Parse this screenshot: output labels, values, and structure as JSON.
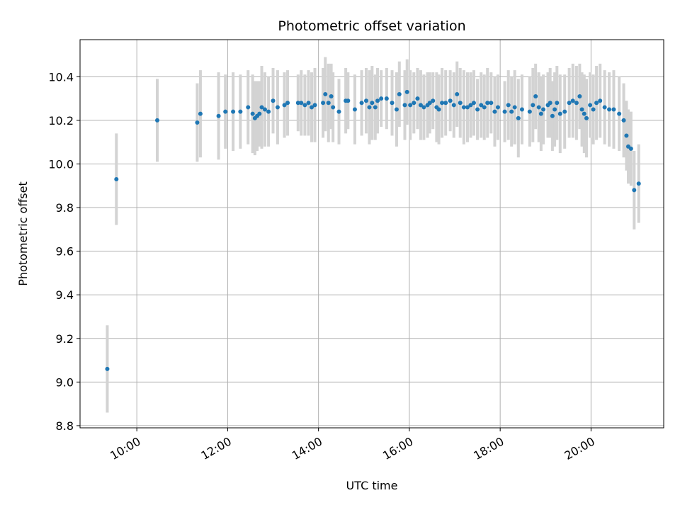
{
  "chart_data": {
    "type": "scatter",
    "title": "Photometric offset variation",
    "xlabel": "UTC time",
    "ylabel": "Photometric offset",
    "x_unit": "hour",
    "xlim": [
      8.75,
      21.6
    ],
    "ylim": [
      8.79,
      10.57
    ],
    "x_ticks": [
      {
        "value": 10,
        "label": "10:00"
      },
      {
        "value": 12,
        "label": "12:00"
      },
      {
        "value": 14,
        "label": "14:00"
      },
      {
        "value": 16,
        "label": "16:00"
      },
      {
        "value": 18,
        "label": "18:00"
      },
      {
        "value": 20,
        "label": "20:00"
      }
    ],
    "y_ticks": [
      {
        "value": 8.8,
        "label": "8.8"
      },
      {
        "value": 9.0,
        "label": "9.0"
      },
      {
        "value": 9.2,
        "label": "9.2"
      },
      {
        "value": 9.4,
        "label": "9.4"
      },
      {
        "value": 9.6,
        "label": "9.6"
      },
      {
        "value": 9.8,
        "label": "9.8"
      },
      {
        "value": 10.0,
        "label": "10.0"
      },
      {
        "value": 10.2,
        "label": "10.2"
      },
      {
        "value": 10.4,
        "label": "10.4"
      }
    ],
    "grid": true,
    "colors": {
      "point": "#1f77b4",
      "errorbar": "#d3d3d3",
      "grid": "#b0b0b0"
    },
    "series": [
      {
        "x": [
          9.35,
          9.55,
          10.45,
          11.33,
          11.4,
          11.8,
          11.95,
          12.12,
          12.28,
          12.45,
          12.55,
          12.6,
          12.65,
          12.7,
          12.75,
          12.82,
          12.9,
          13.0,
          13.1,
          13.25,
          13.32,
          13.55,
          13.62,
          13.7,
          13.78,
          13.85,
          13.92,
          14.1,
          14.15,
          14.22,
          14.28,
          14.32,
          14.45,
          14.6,
          14.65,
          14.8,
          14.95,
          15.05,
          15.12,
          15.18,
          15.25,
          15.3,
          15.38,
          15.5,
          15.62,
          15.72,
          15.78,
          15.9,
          15.95,
          16.02,
          16.1,
          16.18,
          16.25,
          16.32,
          16.4,
          16.45,
          16.52,
          16.6,
          16.65,
          16.72,
          16.8,
          16.9,
          16.98,
          17.05,
          17.12,
          17.2,
          17.28,
          17.35,
          17.42,
          17.5,
          17.58,
          17.65,
          17.72,
          17.8,
          17.88,
          17.95,
          18.1,
          18.18,
          18.25,
          18.32,
          18.4,
          18.48,
          18.65,
          18.72,
          18.78,
          18.85,
          18.9,
          18.95,
          19.05,
          19.1,
          19.15,
          19.2,
          19.25,
          19.32,
          19.42,
          19.52,
          19.6,
          19.68,
          19.75,
          19.8,
          19.85,
          19.9,
          19.98,
          20.05,
          20.12,
          20.2,
          20.3,
          20.4,
          20.5,
          20.62,
          20.72,
          20.78,
          20.82,
          20.88,
          20.95,
          21.05
        ],
        "y": [
          9.06,
          9.93,
          10.2,
          10.19,
          10.23,
          10.22,
          10.24,
          10.24,
          10.24,
          10.26,
          10.23,
          10.21,
          10.22,
          10.23,
          10.26,
          10.25,
          10.24,
          10.29,
          10.26,
          10.27,
          10.28,
          10.28,
          10.28,
          10.27,
          10.28,
          10.26,
          10.27,
          10.28,
          10.32,
          10.28,
          10.31,
          10.26,
          10.24,
          10.29,
          10.29,
          10.25,
          10.28,
          10.29,
          10.26,
          10.28,
          10.26,
          10.29,
          10.3,
          10.3,
          10.28,
          10.25,
          10.32,
          10.27,
          10.33,
          10.27,
          10.28,
          10.3,
          10.27,
          10.26,
          10.27,
          10.28,
          10.29,
          10.26,
          10.25,
          10.28,
          10.28,
          10.29,
          10.27,
          10.32,
          10.28,
          10.26,
          10.26,
          10.27,
          10.28,
          10.25,
          10.27,
          10.26,
          10.28,
          10.28,
          10.24,
          10.26,
          10.24,
          10.27,
          10.24,
          10.26,
          10.21,
          10.25,
          10.24,
          10.27,
          10.31,
          10.26,
          10.23,
          10.25,
          10.27,
          10.28,
          10.22,
          10.25,
          10.28,
          10.23,
          10.24,
          10.28,
          10.29,
          10.28,
          10.31,
          10.25,
          10.23,
          10.21,
          10.27,
          10.25,
          10.28,
          10.29,
          10.26,
          10.25,
          10.25,
          10.23,
          10.2,
          10.13,
          10.08,
          10.07,
          9.88,
          9.91
        ],
        "yerr": [
          0.2,
          0.21,
          0.19,
          0.18,
          0.2,
          0.2,
          0.17,
          0.18,
          0.17,
          0.17,
          0.18,
          0.17,
          0.16,
          0.15,
          0.19,
          0.17,
          0.16,
          0.15,
          0.17,
          0.15,
          0.15,
          0.13,
          0.15,
          0.14,
          0.15,
          0.16,
          0.17,
          0.16,
          0.17,
          0.18,
          0.15,
          0.16,
          0.15,
          0.15,
          0.13,
          0.16,
          0.15,
          0.15,
          0.17,
          0.17,
          0.15,
          0.15,
          0.13,
          0.14,
          0.15,
          0.17,
          0.15,
          0.16,
          0.15,
          0.16,
          0.14,
          0.14,
          0.16,
          0.15,
          0.15,
          0.14,
          0.13,
          0.16,
          0.16,
          0.16,
          0.15,
          0.14,
          0.15,
          0.15,
          0.16,
          0.17,
          0.16,
          0.15,
          0.15,
          0.14,
          0.15,
          0.15,
          0.16,
          0.14,
          0.16,
          0.15,
          0.14,
          0.16,
          0.16,
          0.17,
          0.18,
          0.16,
          0.16,
          0.17,
          0.15,
          0.16,
          0.17,
          0.16,
          0.15,
          0.16,
          0.16,
          0.17,
          0.17,
          0.18,
          0.17,
          0.16,
          0.17,
          0.17,
          0.15,
          0.17,
          0.18,
          0.18,
          0.15,
          0.16,
          0.17,
          0.17,
          0.17,
          0.17,
          0.18,
          0.17,
          0.17,
          0.16,
          0.17,
          0.17,
          0.18,
          0.18
        ]
      }
    ]
  }
}
